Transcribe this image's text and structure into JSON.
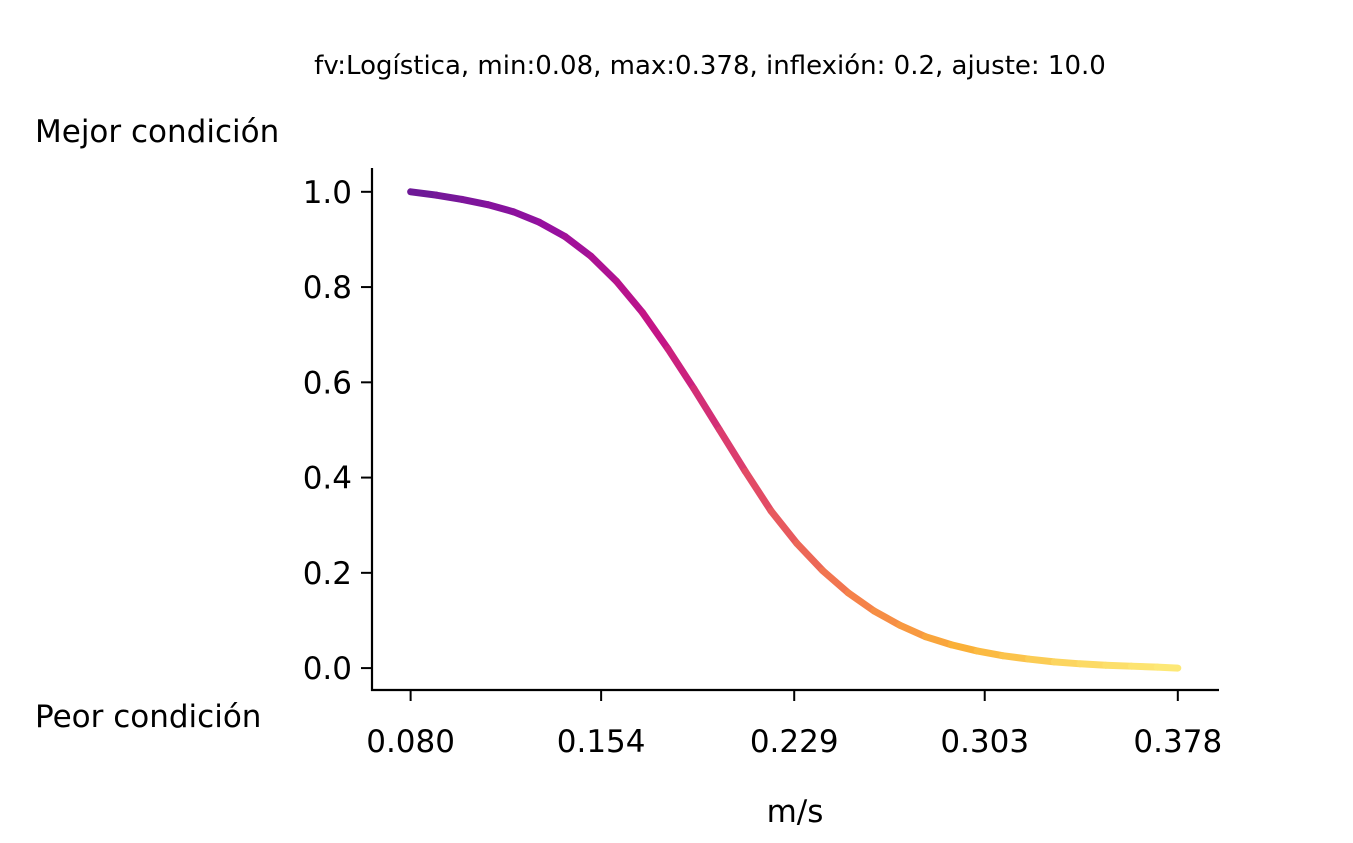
{
  "chart_data": {
    "type": "line",
    "title": "fv:Logística, min:0.08, max:0.378, inflexión: 0.2, ajuste: 10.0",
    "xlabel": "m/s",
    "ylabel_top": "Mejor condición",
    "ylabel_bottom": "Peor condición",
    "xlim": [
      0.065,
      0.394
    ],
    "ylim": [
      -0.046,
      1.05
    ],
    "xticks": [
      0.08,
      0.154,
      0.229,
      0.303,
      0.378
    ],
    "xtick_labels": [
      "0.080",
      "0.154",
      "0.229",
      "0.303",
      "0.378"
    ],
    "yticks": [
      0.0,
      0.2,
      0.4,
      0.6,
      0.8,
      1.0
    ],
    "ytick_labels": [
      "0.0",
      "0.2",
      "0.4",
      "0.6",
      "0.8",
      "1.0"
    ],
    "grid": false,
    "colormap": "plasma",
    "colormap_range": [
      "#6a1a96",
      "#fdea78"
    ],
    "series": [
      {
        "x": [
          0.08,
          0.09,
          0.1,
          0.11,
          0.12,
          0.13,
          0.14,
          0.15,
          0.16,
          0.17,
          0.18,
          0.19,
          0.2,
          0.21,
          0.22,
          0.23,
          0.24,
          0.25,
          0.26,
          0.27,
          0.28,
          0.29,
          0.3,
          0.31,
          0.32,
          0.33,
          0.34,
          0.35,
          0.36,
          0.37,
          0.378
        ],
        "y": [
          1.0,
          0.993,
          0.984,
          0.973,
          0.958,
          0.936,
          0.906,
          0.865,
          0.812,
          0.747,
          0.67,
          0.587,
          0.5,
          0.413,
          0.33,
          0.262,
          0.205,
          0.158,
          0.12,
          0.09,
          0.066,
          0.049,
          0.036,
          0.026,
          0.019,
          0.013,
          0.009,
          0.006,
          0.004,
          0.002,
          0.0
        ]
      }
    ]
  }
}
